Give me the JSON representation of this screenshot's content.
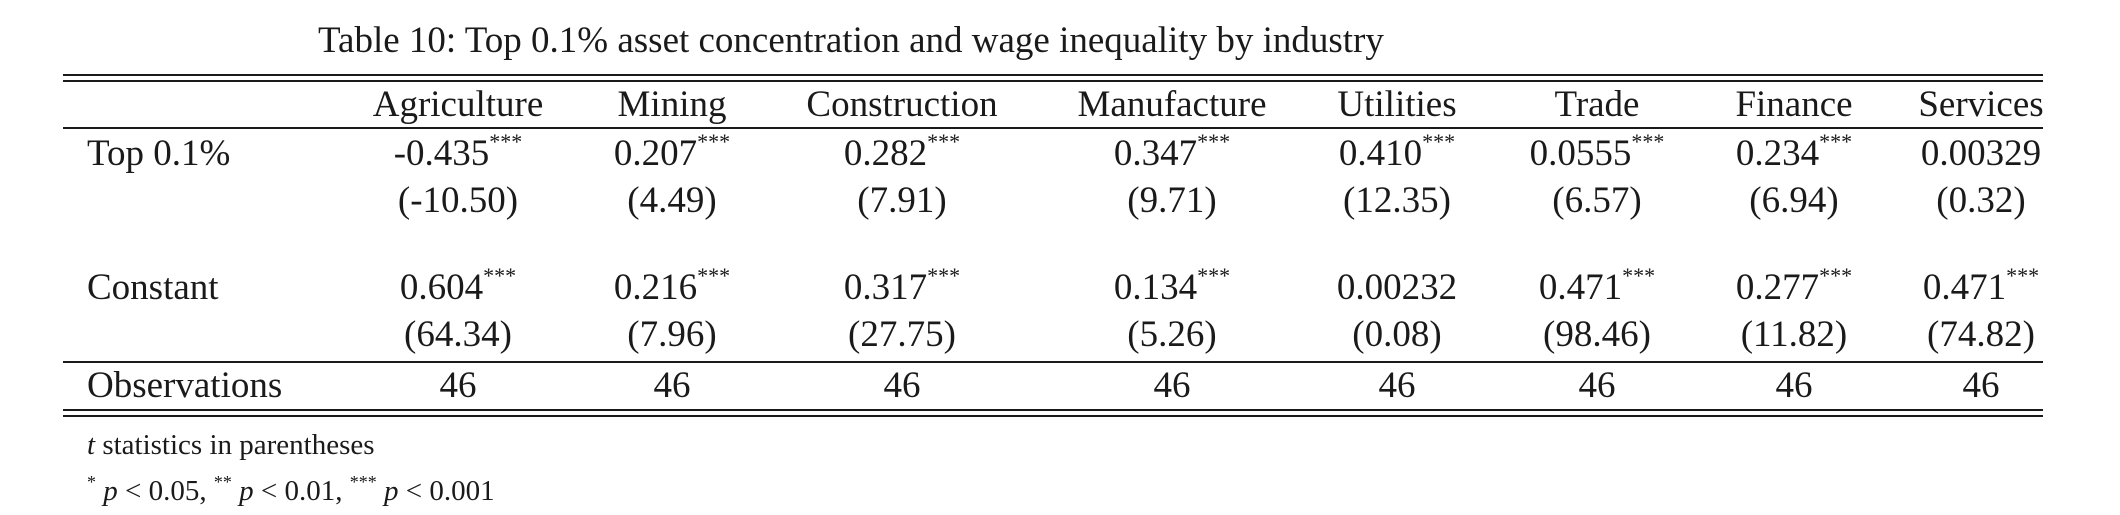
{
  "caption": "Table 10: Top 0.1% asset concentration and wage inequality by industry",
  "columns": [
    "Agriculture",
    "Mining",
    "Construction",
    "Manufacture",
    "Utilities",
    "Trade",
    "Finance",
    "Services"
  ],
  "rows": {
    "top": {
      "label": "Top 0.1%",
      "coefs": [
        "-0.435",
        "0.207",
        "0.282",
        "0.347",
        "0.410",
        "0.0555",
        "0.234",
        "0.00329"
      ],
      "stars": [
        "***",
        "***",
        "***",
        "***",
        "***",
        "***",
        "***",
        ""
      ],
      "tstats": [
        "(-10.50)",
        "(4.49)",
        "(7.91)",
        "(9.71)",
        "(12.35)",
        "(6.57)",
        "(6.94)",
        "(0.32)"
      ]
    },
    "constant": {
      "label": "Constant",
      "coefs": [
        "0.604",
        "0.216",
        "0.317",
        "0.134",
        "0.00232",
        "0.471",
        "0.277",
        "0.471"
      ],
      "stars": [
        "***",
        "***",
        "***",
        "***",
        "",
        "***",
        "***",
        "***"
      ],
      "tstats": [
        "(64.34)",
        "(7.96)",
        "(27.75)",
        "(5.26)",
        "(0.08)",
        "(98.46)",
        "(11.82)",
        "(74.82)"
      ]
    },
    "obs": {
      "label": "Observations",
      "values": [
        "46",
        "46",
        "46",
        "46",
        "46",
        "46",
        "46",
        "46"
      ]
    }
  },
  "notes": {
    "tstat_var": "t",
    "tstat_rest": " statistics in parentheses",
    "sig1_stars": "*",
    "sig1_p": "p",
    "sig1_rest": " < 0.05, ",
    "sig2_stars": "**",
    "sig2_p": "p",
    "sig2_rest": " < 0.01, ",
    "sig3_stars": "***",
    "sig3_p": "p",
    "sig3_rest": " < 0.001"
  }
}
